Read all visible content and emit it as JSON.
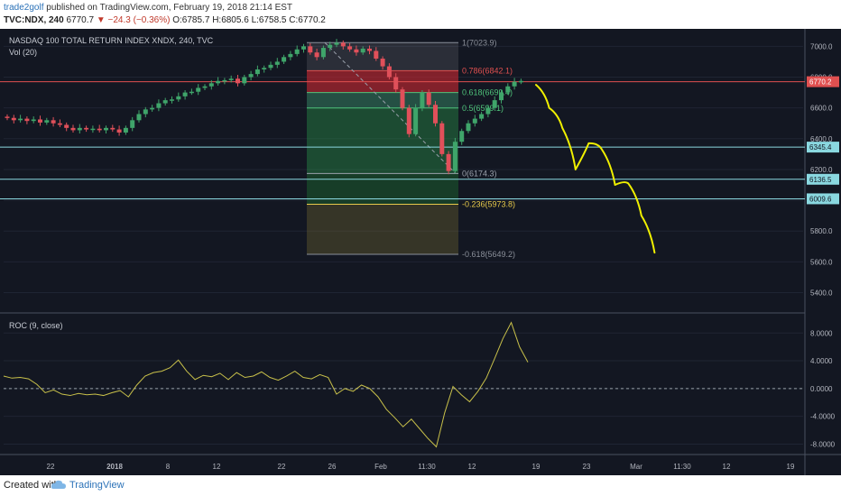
{
  "header": {
    "publisher": "trade2golf",
    "published_text": "published on TradingView.com, February 19, 2018 21:14 EST",
    "symbol": "TVC:NDX, 240",
    "last": "6770.7",
    "change": "−24.3 (−0.36%)",
    "open": "O:6785.7",
    "high": "H:6805.6",
    "low": "L:6758.5",
    "close": "C:6770.2"
  },
  "footer": {
    "created_with": "Created with",
    "brand": "TradingView"
  },
  "colors": {
    "up": "#3fa56a",
    "down": "#e0505a",
    "background": "#131722",
    "drawing": "#f0f000",
    "roc": "#c8c04a"
  },
  "chart_data": [
    {
      "type": "candlestick",
      "title": "NASDAQ 100 TOTAL RETURN INDEX XNDX, 240, TVC",
      "volume_label": "Vol (20)",
      "y_ticks": [
        5400,
        5600,
        5800,
        6000,
        6200,
        6400,
        6600,
        6800,
        7000
      ],
      "ylim": [
        5280,
        7090
      ],
      "x_ticks": [
        "22",
        "2018",
        "8",
        "12",
        "22",
        "26",
        "Feb",
        "11:30",
        "12",
        "19",
        "23",
        "Mar",
        "11:30",
        "12",
        "19"
      ],
      "price_labels": [
        "6770.2",
        "6345.4",
        "6136.5",
        "6009.6"
      ],
      "horizontal_lines": [
        6345.4,
        6136.5,
        6009.6
      ],
      "fib_levels": [
        {
          "label": "1(7023.9)",
          "value": 7023.9
        },
        {
          "label": "0.786(6842.1)",
          "value": 6842.1
        },
        {
          "label": "0.618(6699.4)",
          "value": 6699.4
        },
        {
          "label": "0.5(6599.1)",
          "value": 6599.1
        },
        {
          "label": "0(6174.3)",
          "value": 6174.3
        },
        {
          "label": "-0.236(5973.8)",
          "value": 5973.8
        },
        {
          "label": "-0.618(5649.2)",
          "value": 5649.2
        }
      ],
      "series": [
        {
          "values": [
            6535,
            6520,
            6530,
            6515,
            6525,
            6505,
            6520,
            6500,
            6490,
            6470,
            6455,
            6470,
            6460,
            6465,
            6455,
            6470,
            6460,
            6440,
            6470,
            6520,
            6560,
            6590,
            6600,
            6630,
            6650,
            6655,
            6675,
            6700,
            6705,
            6730,
            6740,
            6760,
            6775,
            6780,
            6790,
            6760,
            6800,
            6820,
            6850,
            6860,
            6880,
            6900,
            6930,
            6950,
            6980,
            7000,
            6960,
            6930,
            6990,
            7010,
            7023,
            7000,
            6980,
            6960,
            6985,
            6970,
            6920,
            6870,
            6800,
            6720,
            6600,
            6430,
            6600,
            6700,
            6620,
            6500,
            6300,
            6190,
            6380,
            6450,
            6500,
            6530,
            6560,
            6600,
            6650,
            6700,
            6740,
            6770,
            6775
          ]
        },
        {
          "drawing": [
            6750,
            6600,
            6470,
            6200,
            6370,
            6330,
            6100,
            6110,
            5900,
            5660
          ]
        }
      ]
    },
    {
      "type": "line",
      "title": "ROC (9, close)",
      "y_ticks": [
        8.0,
        4.0,
        0.0,
        -4.0,
        -8.0
      ],
      "ylim": [
        -9.5,
        10.5
      ],
      "series": [
        {
          "values": [
            1.8,
            1.5,
            1.6,
            1.4,
            0.6,
            -0.6,
            -0.2,
            -0.8,
            -1.0,
            -0.7,
            -0.9,
            -0.8,
            -1.0,
            -0.6,
            -0.3,
            -1.2,
            0.5,
            1.8,
            2.3,
            2.5,
            3.0,
            4.1,
            2.5,
            1.3,
            1.9,
            1.7,
            2.2,
            1.3,
            2.3,
            1.6,
            1.8,
            2.4,
            1.6,
            1.2,
            1.8,
            2.5,
            1.6,
            1.4,
            2.0,
            1.6,
            -0.8,
            0.0,
            -0.4,
            0.5,
            0.0,
            -1.2,
            -3.0,
            -4.2,
            -5.5,
            -4.4,
            -5.8,
            -7.2,
            -8.4,
            -3.5,
            0.3,
            -0.9,
            -1.9,
            -0.4,
            1.5,
            4.3,
            7.2,
            9.5,
            6.0,
            3.8
          ]
        }
      ]
    }
  ]
}
